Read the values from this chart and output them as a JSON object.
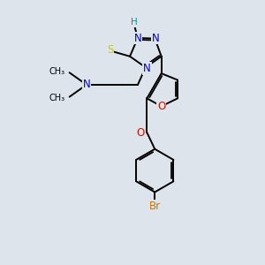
{
  "bg_color": "#dde4ec",
  "atom_colors": {
    "C": "#000000",
    "N": "#0000cc",
    "O": "#cc1100",
    "S": "#cccc00",
    "Br": "#cc7700",
    "H": "#009999"
  },
  "bond_color": "#000000",
  "figsize": [
    3.0,
    3.0
  ],
  "dpi": 100
}
